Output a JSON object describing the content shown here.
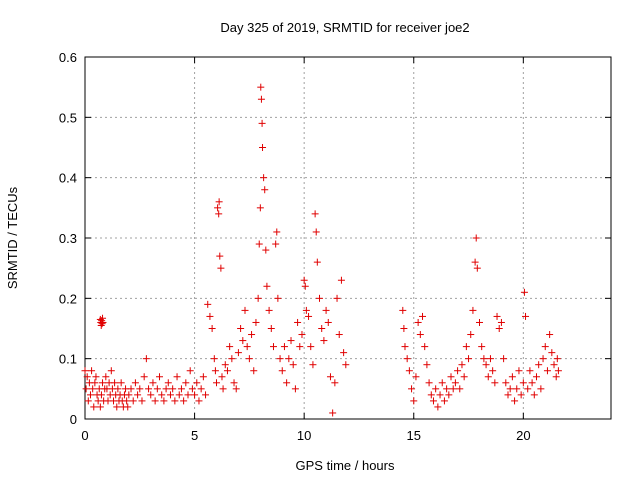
{
  "chart_data": {
    "type": "scatter",
    "title": "Day 325 of 2019, SRMTID for receiver joe2",
    "xlabel": "GPS time / hours",
    "ylabel": "SRMTID / TECUs",
    "xlim": [
      0,
      24
    ],
    "ylim": [
      0,
      0.6
    ],
    "x_ticks": [
      0,
      5,
      10,
      15,
      20
    ],
    "x_tick_labels": [
      "0",
      "5",
      "10",
      "15",
      "20"
    ],
    "y_ticks": [
      0,
      0.1,
      0.2,
      0.3,
      0.4,
      0.5,
      0.6
    ],
    "y_tick_labels": [
      "0",
      "0.1",
      "0.2",
      "0.3",
      "0.4",
      "0.5",
      "0.6"
    ],
    "grid": true,
    "marker": "+",
    "marker_color": "#e00000",
    "series": [
      {
        "name": "SRMTID",
        "points": [
          [
            0.0,
            0.08
          ],
          [
            0.05,
            0.05
          ],
          [
            0.1,
            0.07
          ],
          [
            0.15,
            0.03
          ],
          [
            0.2,
            0.06
          ],
          [
            0.25,
            0.04
          ],
          [
            0.3,
            0.08
          ],
          [
            0.35,
            0.05
          ],
          [
            0.4,
            0.02
          ],
          [
            0.45,
            0.06
          ],
          [
            0.5,
            0.07
          ],
          [
            0.55,
            0.04
          ],
          [
            0.6,
            0.03
          ],
          [
            0.65,
            0.05
          ],
          [
            0.7,
            0.02
          ],
          [
            0.75,
            0.04
          ],
          [
            0.8,
            0.06
          ],
          [
            0.85,
            0.03
          ],
          [
            0.9,
            0.05
          ],
          [
            0.95,
            0.07
          ],
          [
            0.7,
            0.165
          ],
          [
            0.72,
            0.16
          ],
          [
            0.74,
            0.155
          ],
          [
            0.76,
            0.163
          ],
          [
            0.78,
            0.158
          ],
          [
            0.8,
            0.167
          ],
          [
            0.82,
            0.16
          ],
          [
            1.0,
            0.05
          ],
          [
            1.05,
            0.03
          ],
          [
            1.1,
            0.06
          ],
          [
            1.15,
            0.04
          ],
          [
            1.2,
            0.08
          ],
          [
            1.25,
            0.05
          ],
          [
            1.3,
            0.03
          ],
          [
            1.35,
            0.06
          ],
          [
            1.4,
            0.04
          ],
          [
            1.45,
            0.02
          ],
          [
            1.5,
            0.05
          ],
          [
            1.55,
            0.03
          ],
          [
            1.6,
            0.04
          ],
          [
            1.65,
            0.06
          ],
          [
            1.7,
            0.03
          ],
          [
            1.75,
            0.02
          ],
          [
            1.8,
            0.04
          ],
          [
            1.85,
            0.05
          ],
          [
            1.9,
            0.03
          ],
          [
            1.95,
            0.02
          ],
          [
            2.0,
            0.04
          ],
          [
            2.1,
            0.05
          ],
          [
            2.2,
            0.03
          ],
          [
            2.3,
            0.06
          ],
          [
            2.4,
            0.04
          ],
          [
            2.5,
            0.05
          ],
          [
            2.6,
            0.03
          ],
          [
            2.7,
            0.07
          ],
          [
            2.8,
            0.1
          ],
          [
            2.9,
            0.05
          ],
          [
            3.0,
            0.04
          ],
          [
            3.1,
            0.06
          ],
          [
            3.2,
            0.03
          ],
          [
            3.3,
            0.05
          ],
          [
            3.4,
            0.07
          ],
          [
            3.5,
            0.04
          ],
          [
            3.6,
            0.03
          ],
          [
            3.7,
            0.05
          ],
          [
            3.8,
            0.06
          ],
          [
            3.9,
            0.04
          ],
          [
            4.0,
            0.05
          ],
          [
            4.1,
            0.03
          ],
          [
            4.2,
            0.07
          ],
          [
            4.3,
            0.04
          ],
          [
            4.4,
            0.05
          ],
          [
            4.5,
            0.03
          ],
          [
            4.6,
            0.06
          ],
          [
            4.7,
            0.04
          ],
          [
            4.8,
            0.08
          ],
          [
            4.9,
            0.05
          ],
          [
            5.0,
            0.04
          ],
          [
            5.1,
            0.06
          ],
          [
            5.2,
            0.03
          ],
          [
            5.3,
            0.05
          ],
          [
            5.4,
            0.07
          ],
          [
            5.5,
            0.04
          ],
          [
            5.6,
            0.19
          ],
          [
            5.7,
            0.17
          ],
          [
            5.8,
            0.15
          ],
          [
            5.9,
            0.1
          ],
          [
            5.95,
            0.08
          ],
          [
            6.0,
            0.06
          ],
          [
            6.05,
            0.35
          ],
          [
            6.1,
            0.34
          ],
          [
            6.12,
            0.36
          ],
          [
            6.15,
            0.27
          ],
          [
            6.2,
            0.25
          ],
          [
            6.25,
            0.07
          ],
          [
            6.3,
            0.05
          ],
          [
            6.4,
            0.09
          ],
          [
            6.5,
            0.08
          ],
          [
            6.6,
            0.12
          ],
          [
            6.7,
            0.1
          ],
          [
            6.8,
            0.06
          ],
          [
            6.9,
            0.05
          ],
          [
            7.0,
            0.11
          ],
          [
            7.1,
            0.15
          ],
          [
            7.2,
            0.13
          ],
          [
            7.3,
            0.18
          ],
          [
            7.4,
            0.12
          ],
          [
            7.5,
            0.1
          ],
          [
            7.6,
            0.14
          ],
          [
            7.7,
            0.08
          ],
          [
            7.8,
            0.16
          ],
          [
            7.9,
            0.2
          ],
          [
            7.95,
            0.29
          ],
          [
            8.0,
            0.35
          ],
          [
            8.02,
            0.55
          ],
          [
            8.05,
            0.53
          ],
          [
            8.08,
            0.49
          ],
          [
            8.1,
            0.45
          ],
          [
            8.15,
            0.4
          ],
          [
            8.2,
            0.38
          ],
          [
            8.25,
            0.28
          ],
          [
            8.3,
            0.22
          ],
          [
            8.4,
            0.18
          ],
          [
            8.5,
            0.15
          ],
          [
            8.6,
            0.12
          ],
          [
            8.7,
            0.29
          ],
          [
            8.75,
            0.31
          ],
          [
            8.8,
            0.2
          ],
          [
            8.9,
            0.1
          ],
          [
            9.0,
            0.08
          ],
          [
            9.1,
            0.12
          ],
          [
            9.2,
            0.06
          ],
          [
            9.3,
            0.1
          ],
          [
            9.4,
            0.13
          ],
          [
            9.5,
            0.09
          ],
          [
            9.6,
            0.05
          ],
          [
            9.7,
            0.16
          ],
          [
            9.8,
            0.12
          ],
          [
            9.9,
            0.14
          ],
          [
            10.0,
            0.23
          ],
          [
            10.05,
            0.22
          ],
          [
            10.1,
            0.18
          ],
          [
            10.2,
            0.17
          ],
          [
            10.3,
            0.12
          ],
          [
            10.4,
            0.09
          ],
          [
            10.5,
            0.34
          ],
          [
            10.55,
            0.31
          ],
          [
            10.6,
            0.26
          ],
          [
            10.7,
            0.2
          ],
          [
            10.8,
            0.15
          ],
          [
            10.9,
            0.13
          ],
          [
            11.0,
            0.18
          ],
          [
            11.1,
            0.16
          ],
          [
            11.2,
            0.07
          ],
          [
            11.3,
            0.01
          ],
          [
            11.4,
            0.06
          ],
          [
            11.5,
            0.2
          ],
          [
            11.6,
            0.14
          ],
          [
            11.7,
            0.23
          ],
          [
            11.8,
            0.11
          ],
          [
            11.9,
            0.09
          ],
          [
            14.5,
            0.18
          ],
          [
            14.55,
            0.15
          ],
          [
            14.6,
            0.12
          ],
          [
            14.7,
            0.1
          ],
          [
            14.8,
            0.08
          ],
          [
            14.9,
            0.05
          ],
          [
            15.0,
            0.03
          ],
          [
            15.1,
            0.07
          ],
          [
            15.2,
            0.16
          ],
          [
            15.3,
            0.14
          ],
          [
            15.4,
            0.17
          ],
          [
            15.5,
            0.12
          ],
          [
            15.6,
            0.09
          ],
          [
            15.7,
            0.06
          ],
          [
            15.8,
            0.04
          ],
          [
            15.9,
            0.03
          ],
          [
            16.0,
            0.05
          ],
          [
            16.1,
            0.02
          ],
          [
            16.2,
            0.04
          ],
          [
            16.3,
            0.06
          ],
          [
            16.4,
            0.03
          ],
          [
            16.5,
            0.05
          ],
          [
            16.6,
            0.04
          ],
          [
            16.7,
            0.07
          ],
          [
            16.8,
            0.05
          ],
          [
            16.9,
            0.06
          ],
          [
            17.0,
            0.08
          ],
          [
            17.1,
            0.05
          ],
          [
            17.2,
            0.09
          ],
          [
            17.3,
            0.07
          ],
          [
            17.4,
            0.12
          ],
          [
            17.5,
            0.1
          ],
          [
            17.6,
            0.14
          ],
          [
            17.7,
            0.18
          ],
          [
            17.8,
            0.26
          ],
          [
            17.85,
            0.3
          ],
          [
            17.9,
            0.25
          ],
          [
            18.0,
            0.16
          ],
          [
            18.1,
            0.12
          ],
          [
            18.2,
            0.1
          ],
          [
            18.3,
            0.09
          ],
          [
            18.4,
            0.07
          ],
          [
            18.5,
            0.1
          ],
          [
            18.6,
            0.08
          ],
          [
            18.7,
            0.06
          ],
          [
            18.8,
            0.17
          ],
          [
            18.9,
            0.15
          ],
          [
            19.0,
            0.16
          ],
          [
            19.1,
            0.1
          ],
          [
            19.2,
            0.06
          ],
          [
            19.3,
            0.04
          ],
          [
            19.4,
            0.05
          ],
          [
            19.5,
            0.07
          ],
          [
            19.6,
            0.03
          ],
          [
            19.7,
            0.05
          ],
          [
            19.8,
            0.08
          ],
          [
            19.9,
            0.04
          ],
          [
            20.0,
            0.06
          ],
          [
            20.05,
            0.21
          ],
          [
            20.1,
            0.17
          ],
          [
            20.2,
            0.05
          ],
          [
            20.3,
            0.08
          ],
          [
            20.4,
            0.06
          ],
          [
            20.5,
            0.04
          ],
          [
            20.6,
            0.07
          ],
          [
            20.7,
            0.09
          ],
          [
            20.8,
            0.05
          ],
          [
            20.9,
            0.1
          ],
          [
            21.0,
            0.12
          ],
          [
            21.1,
            0.08
          ],
          [
            21.2,
            0.14
          ],
          [
            21.3,
            0.11
          ],
          [
            21.4,
            0.09
          ],
          [
            21.5,
            0.07
          ],
          [
            21.55,
            0.1
          ],
          [
            21.6,
            0.08
          ]
        ]
      }
    ]
  }
}
